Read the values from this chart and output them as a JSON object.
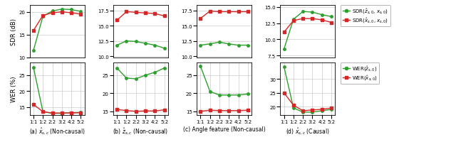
{
  "x_labels": [
    "1:1",
    "1:2",
    "2:2",
    "3:2",
    "4:2",
    "5:2"
  ],
  "x_vals": [
    0,
    1,
    2,
    3,
    4,
    5
  ],
  "panels": [
    {
      "title": "(a) $\\hat{x}_{s,c}$ (Non-causal)",
      "sdr_green": [
        11.5,
        19.0,
        20.2,
        20.6,
        20.5,
        20.1
      ],
      "sdr_red": [
        15.9,
        19.2,
        19.8,
        20.0,
        19.8,
        19.5
      ],
      "wer_green": [
        27.5,
        13.5,
        13.0,
        13.0,
        13.2,
        13.3
      ],
      "wer_red": [
        15.8,
        13.5,
        13.1,
        13.1,
        13.1,
        13.2
      ],
      "sdr_ylim": [
        10,
        21.5
      ],
      "sdr_yticks": [
        10,
        15,
        20
      ],
      "wer_ylim": [
        12.5,
        29
      ],
      "wer_yticks": [
        15,
        20,
        25
      ]
    },
    {
      "title": "(b) $\\hat{z}_{s,c}$ (Non-causal)",
      "sdr_green": [
        11.8,
        12.5,
        12.4,
        12.1,
        11.8,
        11.3
      ],
      "sdr_red": [
        15.9,
        17.3,
        17.2,
        17.1,
        17.0,
        16.6
      ],
      "wer_green": [
        27.0,
        24.2,
        24.0,
        25.0,
        25.8,
        27.0
      ],
      "wer_red": [
        15.5,
        15.2,
        15.0,
        15.1,
        15.1,
        15.4
      ],
      "sdr_ylim": [
        9.8,
        18.4
      ],
      "sdr_yticks": [
        10.0,
        12.5,
        15.0,
        17.5
      ],
      "wer_ylim": [
        14.0,
        28.5
      ],
      "wer_yticks": [
        15,
        20,
        25
      ]
    },
    {
      "title": "(c) Angle feature (Non-causal)",
      "sdr_green": [
        11.8,
        12.0,
        12.3,
        12.0,
        11.8,
        11.8
      ],
      "sdr_red": [
        16.2,
        17.4,
        17.3,
        17.3,
        17.3,
        17.3
      ],
      "wer_green": [
        27.5,
        20.5,
        19.5,
        19.5,
        19.5,
        19.8
      ],
      "wer_red": [
        15.0,
        15.3,
        15.2,
        15.2,
        15.2,
        15.3
      ],
      "sdr_ylim": [
        9.8,
        18.4
      ],
      "sdr_yticks": [
        10.0,
        12.5,
        15.0,
        17.5
      ],
      "wer_ylim": [
        14.0,
        28.5
      ],
      "wer_yticks": [
        15,
        20,
        25
      ]
    },
    {
      "title": "(d) $\\hat{x}_{s,c}$ (Causal)",
      "sdr_green": [
        8.5,
        13.1,
        14.3,
        14.2,
        13.8,
        13.5
      ],
      "sdr_red": [
        11.1,
        12.9,
        13.2,
        13.2,
        13.0,
        12.6
      ],
      "wer_green": [
        34.5,
        19.5,
        18.0,
        18.0,
        18.5,
        19.0
      ],
      "wer_red": [
        25.0,
        20.5,
        18.5,
        18.8,
        19.0,
        19.5
      ],
      "sdr_ylim": [
        7.2,
        15.3
      ],
      "sdr_yticks": [
        7.5,
        10.0,
        12.5,
        15.0
      ],
      "wer_ylim": [
        17.0,
        36.0
      ],
      "wer_yticks": [
        20,
        25,
        30
      ]
    }
  ],
  "color_green": "#2ca02c",
  "color_red": "#d62728",
  "sdr_legend": [
    "SDR($\\hat{z}_{s,0}$, $x_{s,0}$)",
    "SDR($\\hat{x}_{s,0}$, $x_{s,0}$)"
  ],
  "wer_legend": [
    "WER($\\hat{z}_{s,0}$)",
    "WER($\\hat{x}_{s,0}$)"
  ],
  "ylabel_sdr": "SDR (dB)",
  "ylabel_wer": "WER (%)"
}
